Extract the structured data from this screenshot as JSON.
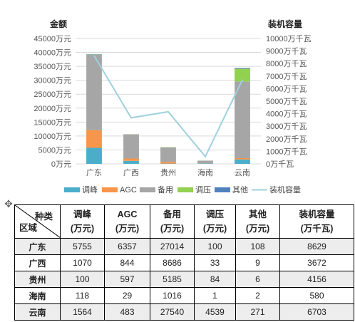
{
  "chart_data": {
    "type": "bar",
    "stacked": true,
    "categories": [
      "广东",
      "广西",
      "贵州",
      "海南",
      "云南"
    ],
    "series": [
      {
        "name": "调峰",
        "kind": "bar",
        "axis": "left",
        "color": "#4aaecb",
        "values": [
          5755,
          1070,
          100,
          118,
          1564
        ]
      },
      {
        "name": "AGC",
        "kind": "bar",
        "axis": "left",
        "color": "#f7964a",
        "values": [
          6357,
          844,
          597,
          29,
          483
        ]
      },
      {
        "name": "备用",
        "kind": "bar",
        "axis": "left",
        "color": "#a6a6a6",
        "values": [
          27014,
          8686,
          5185,
          1016,
          27540
        ]
      },
      {
        "name": "调压",
        "kind": "bar",
        "axis": "left",
        "color": "#92d050",
        "values": [
          100,
          33,
          84,
          1,
          4539
        ]
      },
      {
        "name": "其他",
        "kind": "bar",
        "axis": "left",
        "color": "#4f81bd",
        "values": [
          108,
          9,
          6,
          2,
          271
        ]
      },
      {
        "name": "装机容量",
        "kind": "line",
        "axis": "right",
        "color": "#9fd0de",
        "values": [
          8629,
          3672,
          4156,
          580,
          6703
        ]
      }
    ],
    "ylabel": "金额",
    "y2label": "装机容量",
    "ylim": [
      0,
      45000
    ],
    "y2lim": [
      0,
      10000
    ],
    "yticks": [
      "0万元",
      "5000万元",
      "10000万元",
      "15000万元",
      "20000万元",
      "25000万元",
      "30000万元",
      "35000万元",
      "40000万元",
      "45000万元"
    ],
    "y2ticks": [
      "0万千瓦",
      "1000万千瓦",
      "2000万千瓦",
      "3000万千瓦",
      "4000万千瓦",
      "5000万千瓦",
      "6000万千瓦",
      "7000万千瓦",
      "8000万千瓦",
      "9000万千瓦",
      "10000万千瓦"
    ],
    "legend_position": "bottom",
    "grid": true
  },
  "table": {
    "corner_top": "种类",
    "corner_bottom": "区域",
    "headers": [
      {
        "l1": "调峰",
        "l2": "(万元)"
      },
      {
        "l1": "AGC",
        "l2": "(万元)"
      },
      {
        "l1": "备用",
        "l2": "(万元)"
      },
      {
        "l1": "调压",
        "l2": "(万元)"
      },
      {
        "l1": "其他",
        "l2": "(万元)"
      },
      {
        "l1": "装机容量",
        "l2": "(万千瓦)"
      }
    ],
    "rows": [
      {
        "region": "广东",
        "cells": [
          "5755",
          "6357",
          "27014",
          "100",
          "108",
          "8629"
        ]
      },
      {
        "region": "广西",
        "cells": [
          "1070",
          "844",
          "8686",
          "33",
          "9",
          "3672"
        ]
      },
      {
        "region": "贵州",
        "cells": [
          "100",
          "597",
          "5185",
          "84",
          "6",
          "4156"
        ]
      },
      {
        "region": "海南",
        "cells": [
          "118",
          "29",
          "1016",
          "1",
          "2",
          "580"
        ]
      },
      {
        "region": "云南",
        "cells": [
          "1564",
          "483",
          "27540",
          "4539",
          "271",
          "6703"
        ]
      }
    ]
  },
  "move_handle_icon": "move-arrows-icon"
}
